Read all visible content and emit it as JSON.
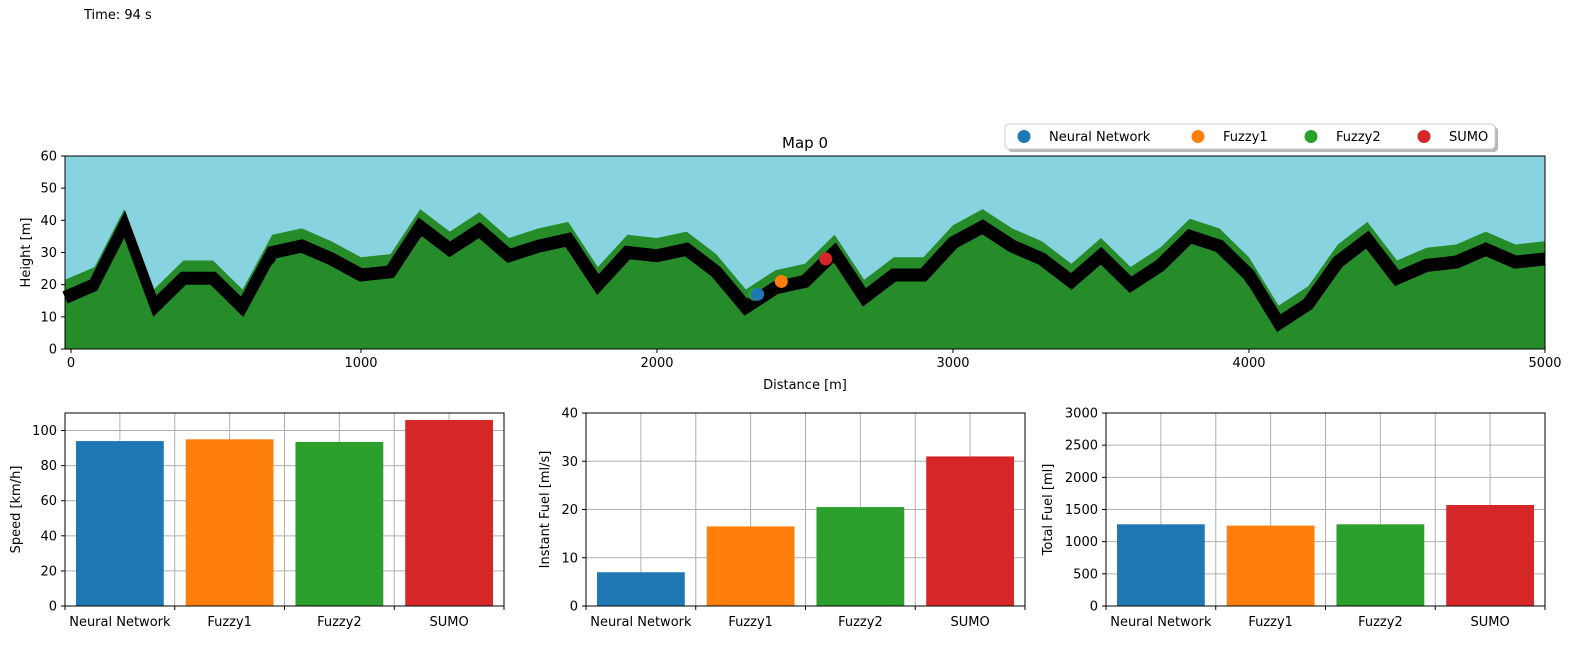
{
  "time_label": "Time: 94 s",
  "colors": {
    "sky": "#87d3e0",
    "terrain": "#268c2a",
    "road": "#000000",
    "grid": "#b0b0b0",
    "series": [
      "#1f77b4",
      "#ff7f0e",
      "#2ca02c",
      "#d62728"
    ]
  },
  "chart_data": [
    {
      "type": "area",
      "title": "Map 0",
      "xlabel": "Distance [m]",
      "ylabel": "Height [m]",
      "xlim": [
        0,
        5000
      ],
      "ylim": [
        0,
        60
      ],
      "xticks": [
        0,
        1000,
        2000,
        3000,
        4000,
        5000
      ],
      "yticks": [
        0,
        10,
        20,
        30,
        40,
        50,
        60
      ],
      "legend_position": "top-right",
      "road_profile": {
        "x": [
          0,
          100,
          200,
          300,
          400,
          500,
          600,
          700,
          800,
          900,
          1000,
          1100,
          1200,
          1300,
          1400,
          1500,
          1600,
          1700,
          1800,
          1900,
          2000,
          2100,
          2200,
          2300,
          2400,
          2500,
          2600,
          2700,
          2800,
          2900,
          3000,
          3100,
          3200,
          3300,
          3400,
          3500,
          3600,
          3700,
          3800,
          3900,
          4000,
          4100,
          4200,
          4300,
          4400,
          4500,
          4600,
          4700,
          4800,
          4900,
          5000
        ],
        "y": [
          16,
          20,
          38,
          13,
          22,
          22,
          13,
          30,
          32,
          28,
          23,
          24,
          38,
          31,
          37,
          29,
          32,
          34,
          20,
          30,
          29,
          31,
          24,
          13,
          19,
          21,
          30,
          16,
          23,
          23,
          33,
          38,
          32,
          28,
          21,
          29,
          20,
          26,
          35,
          32,
          23,
          8,
          14,
          27,
          34,
          22,
          26,
          27,
          31,
          27,
          28
        ]
      },
      "vehicles": [
        {
          "name": "Neural Network",
          "x": 2340,
          "y": 17
        },
        {
          "name": "Fuzzy1",
          "x": 2420,
          "y": 21
        },
        {
          "name": "Fuzzy2",
          "x": 2330,
          "y": 17
        },
        {
          "name": "SUMO",
          "x": 2570,
          "y": 28
        }
      ]
    },
    {
      "type": "bar",
      "categories": [
        "Neural Network",
        "Fuzzy1",
        "Fuzzy2",
        "SUMO"
      ],
      "values": [
        94,
        95,
        93.5,
        106
      ],
      "ylabel": "Speed [km/h]",
      "ylim": [
        0,
        110
      ],
      "yticks": [
        0,
        20,
        40,
        60,
        80,
        100
      ],
      "grid": true
    },
    {
      "type": "bar",
      "categories": [
        "Neural Network",
        "Fuzzy1",
        "Fuzzy2",
        "SUMO"
      ],
      "values": [
        7,
        16.5,
        20.5,
        31
      ],
      "ylabel": "Instant Fuel [ml/s]",
      "ylim": [
        0,
        40
      ],
      "yticks": [
        0,
        10,
        20,
        30,
        40
      ],
      "grid": true
    },
    {
      "type": "bar",
      "categories": [
        "Neural Network",
        "Fuzzy1",
        "Fuzzy2",
        "SUMO"
      ],
      "values": [
        1270,
        1250,
        1270,
        1570
      ],
      "ylabel": "Total Fuel [ml]",
      "ylim": [
        0,
        3000
      ],
      "yticks": [
        0,
        500,
        1000,
        1500,
        2000,
        2500,
        3000
      ],
      "grid": true
    }
  ]
}
